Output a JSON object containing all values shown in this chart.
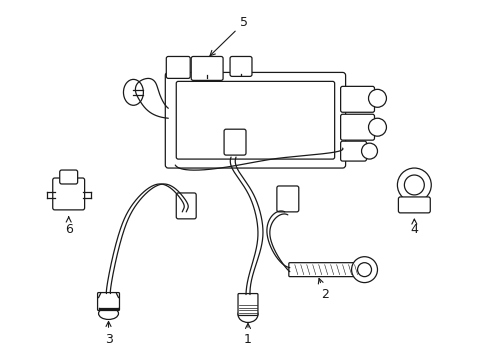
{
  "background_color": "#ffffff",
  "line_color": "#1a1a1a",
  "figsize": [
    4.89,
    3.6
  ],
  "dpi": 100,
  "label_fontsize": 9,
  "lw": 0.9
}
